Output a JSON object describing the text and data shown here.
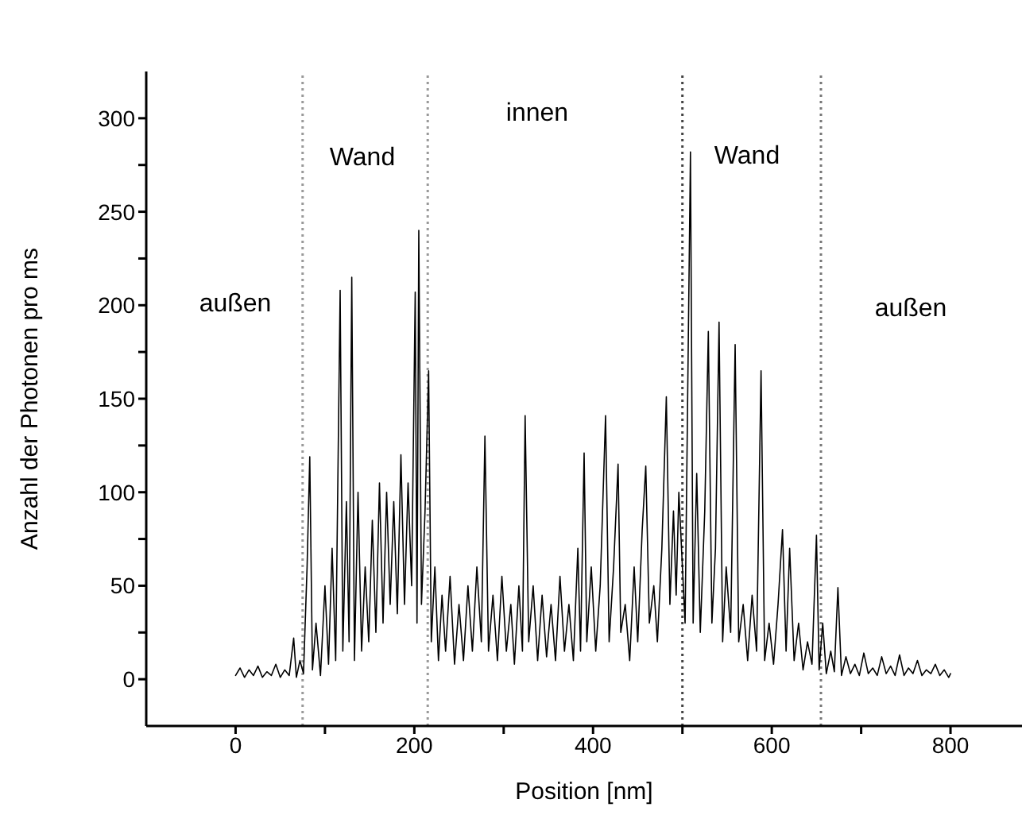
{
  "chart_data": {
    "type": "line",
    "xlabel": "Position [nm]",
    "ylabel": "Anzahl der Photonen pro ms",
    "xlim": [
      -100,
      880
    ],
    "xticks": [
      0,
      {
        "value": 100,
        "label": null
      },
      200,
      {
        "value": 300,
        "label": null
      },
      400,
      {
        "value": 500,
        "label": null
      },
      600,
      {
        "value": 700,
        "label": null
      },
      800
    ],
    "ylim": [
      -25,
      325
    ],
    "yticks": [
      0,
      {
        "value": 25,
        "label": null
      },
      50,
      {
        "value": 75,
        "label": null
      },
      100,
      {
        "value": 125,
        "label": null
      },
      150,
      {
        "value": 175,
        "label": null
      },
      200,
      {
        "value": 225,
        "label": null
      },
      250,
      {
        "value": 275,
        "label": null
      },
      300
    ],
    "grid": false,
    "legend": false,
    "marker": "none",
    "line_style": "solid",
    "ref_lines": [
      {
        "axis": "x",
        "value": 75,
        "color": "#999999",
        "line_style": "dotted"
      },
      {
        "axis": "x",
        "value": 215,
        "color": "#999999",
        "line_style": "dotted"
      },
      {
        "axis": "x",
        "value": 500,
        "color": "#444444",
        "line_style": "dotted"
      },
      {
        "axis": "x",
        "value": 655,
        "color": "#777777",
        "line_style": "dotted"
      }
    ],
    "annotations": [
      "außen",
      "Wand",
      "innen",
      "Wand",
      "außen"
    ],
    "series": [
      {
        "color": "#000000",
        "x": [
          0,
          5,
          10,
          15,
          20,
          25,
          30,
          35,
          40,
          45,
          50,
          55,
          60,
          65,
          68,
          72,
          76,
          80,
          83,
          86,
          90,
          95,
          100,
          104,
          108,
          112,
          117,
          120,
          124,
          127,
          130,
          133,
          137,
          141,
          145,
          149,
          153,
          157,
          161,
          165,
          169,
          173,
          177,
          181,
          185,
          189,
          193,
          197,
          201,
          203,
          205,
          208,
          212,
          216,
          219,
          223,
          227,
          231,
          235,
          240,
          245,
          250,
          255,
          260,
          265,
          270,
          275,
          279,
          283,
          288,
          293,
          298,
          303,
          308,
          312,
          317,
          321,
          324,
          328,
          333,
          338,
          343,
          348,
          353,
          358,
          363,
          368,
          373,
          378,
          383,
          386,
          390,
          393,
          398,
          403,
          408,
          414,
          418,
          423,
          428,
          431,
          436,
          441,
          446,
          450,
          455,
          459,
          463,
          468,
          472,
          477,
          482,
          486,
          490,
          493,
          496,
          503,
          509,
          512,
          516,
          520,
          525,
          529,
          533,
          537,
          541,
          545,
          549,
          554,
          559,
          563,
          568,
          573,
          578,
          583,
          588,
          592,
          597,
          602,
          607,
          612,
          616,
          620,
          625,
          630,
          635,
          640,
          645,
          650,
          653,
          657,
          661,
          666,
          670,
          674,
          678,
          683,
          688,
          693,
          698,
          703,
          708,
          713,
          718,
          723,
          728,
          733,
          738,
          743,
          748,
          753,
          758,
          763,
          768,
          773,
          778,
          783,
          788,
          793,
          798,
          800
        ],
        "values": [
          2,
          6,
          1,
          5,
          2,
          7,
          1,
          4,
          2,
          8,
          1,
          5,
          2,
          22,
          1,
          10,
          3,
          60,
          119,
          5,
          30,
          2,
          50,
          8,
          70,
          10,
          208,
          15,
          95,
          20,
          215,
          10,
          100,
          15,
          60,
          20,
          85,
          25,
          105,
          30,
          100,
          40,
          95,
          35,
          120,
          40,
          105,
          50,
          207,
          30,
          240,
          40,
          90,
          165,
          20,
          60,
          10,
          45,
          15,
          55,
          8,
          40,
          10,
          50,
          15,
          60,
          20,
          130,
          15,
          45,
          10,
          55,
          15,
          40,
          8,
          50,
          15,
          141,
          20,
          50,
          10,
          45,
          12,
          40,
          10,
          55,
          15,
          40,
          10,
          70,
          15,
          121,
          20,
          60,
          15,
          50,
          141,
          20,
          60,
          115,
          25,
          40,
          10,
          60,
          20,
          80,
          114,
          30,
          50,
          20,
          70,
          151,
          40,
          90,
          45,
          100,
          30,
          282,
          30,
          110,
          25,
          90,
          186,
          30,
          70,
          191,
          20,
          60,
          25,
          179,
          20,
          40,
          10,
          45,
          15,
          165,
          10,
          30,
          8,
          40,
          80,
          15,
          70,
          10,
          30,
          5,
          20,
          8,
          77,
          5,
          30,
          3,
          15,
          4,
          49,
          2,
          12,
          3,
          8,
          2,
          14,
          3,
          6,
          2,
          12,
          3,
          7,
          2,
          13,
          2,
          6,
          3,
          10,
          2,
          5,
          3,
          8,
          2,
          5,
          1,
          3
        ]
      }
    ]
  }
}
